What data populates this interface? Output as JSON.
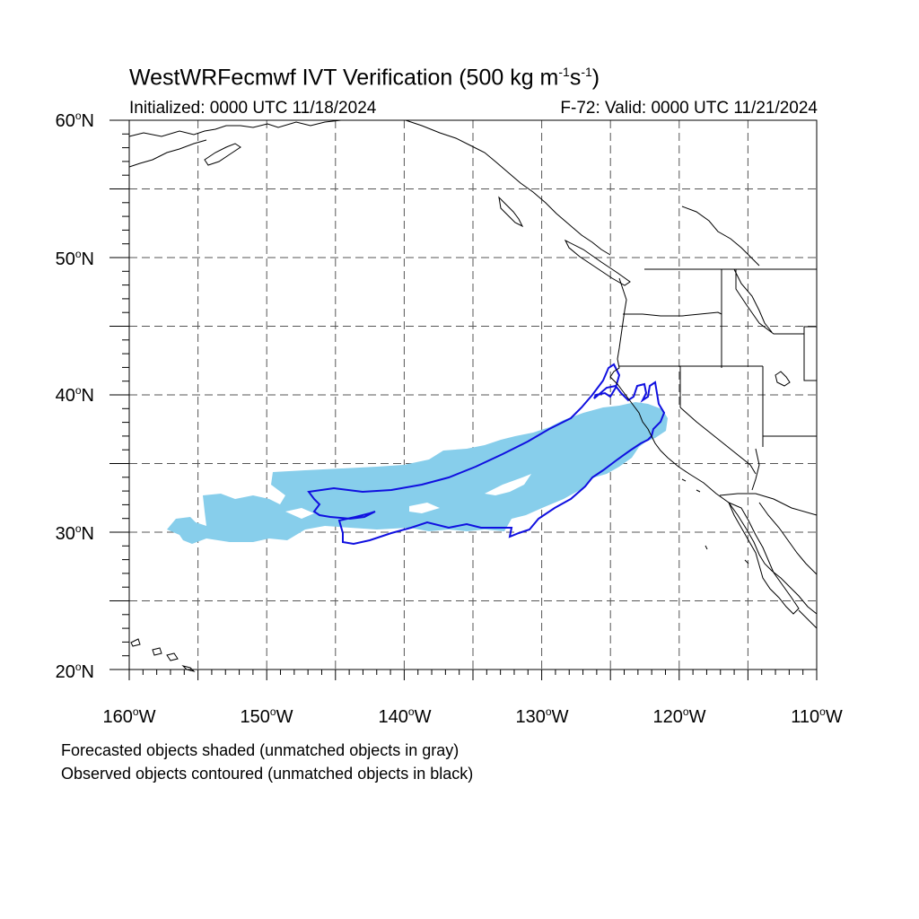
{
  "header": {
    "title_main": "WestWRFecmwf IVT Verification (500 kg m",
    "title_exp1": "-1",
    "title_mid": "s",
    "title_exp2": "-1",
    "title_end": ")",
    "initialized": "Initialized: 0000 UTC 11/18/2024",
    "valid": "F-72: Valid: 0000 UTC 11/21/2024"
  },
  "axes": {
    "lat_labels": [
      {
        "num": "60",
        "suffix": "N"
      },
      {
        "num": "50",
        "suffix": "N"
      },
      {
        "num": "40",
        "suffix": "N"
      },
      {
        "num": "30",
        "suffix": "N"
      },
      {
        "num": "20",
        "suffix": "N"
      }
    ],
    "lon_labels": [
      {
        "num": "160",
        "suffix": "W"
      },
      {
        "num": "150",
        "suffix": "W"
      },
      {
        "num": "140",
        "suffix": "W"
      },
      {
        "num": "130",
        "suffix": "W"
      },
      {
        "num": "120",
        "suffix": "W"
      },
      {
        "num": "110",
        "suffix": "W"
      }
    ],
    "degree_symbol": "o",
    "lat_range": [
      20,
      60
    ],
    "lon_range": [
      -160,
      -110
    ],
    "grid_spacing_deg": 5,
    "grid_style": "dashed"
  },
  "legend": {
    "line1": "Forecasted objects shaded (unmatched objects in gray)",
    "line2": "Observed objects contoured (unmatched objects in black)"
  },
  "colors": {
    "forecast_fill": "#87CEEB",
    "observed_contour": "#1010E0",
    "coastline": "#000000",
    "grid": "#555555"
  }
}
